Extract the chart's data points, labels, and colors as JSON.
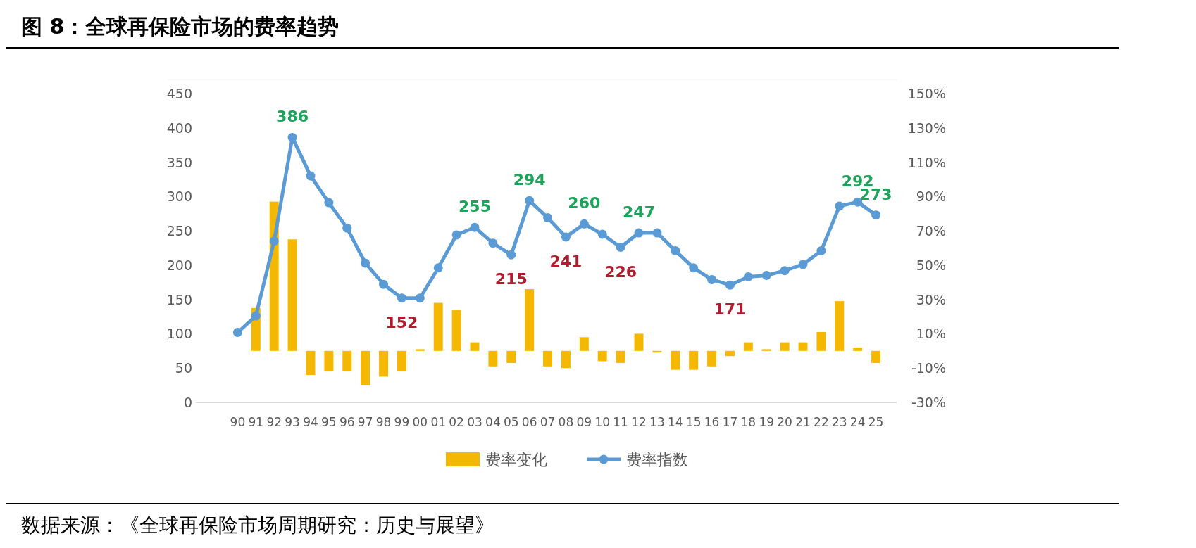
{
  "chart_data": {
    "type": "bar",
    "title": "图 8：全球再保险市场的费率趋势",
    "categories": [
      "90",
      "91",
      "92",
      "93",
      "94",
      "95",
      "96",
      "97",
      "98",
      "99",
      "00",
      "01",
      "02",
      "03",
      "04",
      "05",
      "06",
      "07",
      "08",
      "09",
      "10",
      "11",
      "12",
      "13",
      "14",
      "15",
      "16",
      "17",
      "18",
      "19",
      "20",
      "21",
      "22",
      "23",
      "24",
      "25"
    ],
    "series": [
      {
        "name": "费率变化",
        "axis": "y2",
        "color": "#f5b800",
        "values": [
          null,
          25,
          87,
          65,
          -14,
          -12,
          -12,
          -20,
          -15,
          -12,
          1,
          28,
          24,
          5,
          -9,
          -7,
          36,
          -9,
          -10,
          8,
          -6,
          -7,
          10,
          -1,
          -11,
          -11,
          -9,
          -3,
          5,
          1,
          5,
          5,
          11,
          29,
          2,
          -7
        ]
      },
      {
        "name": "费率指数",
        "type": "line",
        "color": "#5b9bd5",
        "marker": "circle",
        "values": [
          102,
          126,
          235,
          386,
          330,
          291,
          254,
          203,
          172,
          152,
          152,
          196,
          244,
          255,
          232,
          215,
          294,
          269,
          241,
          260,
          245,
          226,
          247,
          247,
          221,
          196,
          179,
          171,
          183,
          185,
          192,
          201,
          221,
          286,
          292,
          273
        ],
        "value_labels": [
          null,
          null,
          null,
          "386",
          null,
          null,
          null,
          null,
          null,
          "152",
          null,
          null,
          null,
          "255",
          null,
          "215",
          "294",
          null,
          "241",
          "260",
          null,
          "226",
          "247",
          null,
          null,
          null,
          null,
          "171",
          null,
          null,
          null,
          null,
          null,
          null,
          "292",
          "273"
        ]
      }
    ],
    "ylim": [
      0,
      450
    ],
    "yticks": [
      0,
      50,
      100,
      150,
      200,
      250,
      300,
      350,
      400,
      450
    ],
    "y2lim": [
      -30,
      150
    ],
    "y2ticks": [
      {
        "value": -30,
        "label": "-30%"
      },
      {
        "value": -10,
        "label": "-10%"
      },
      {
        "value": 10,
        "label": "10%"
      },
      {
        "value": 30,
        "label": "30%"
      },
      {
        "value": 50,
        "label": "50%"
      },
      {
        "value": 70,
        "label": "70%"
      },
      {
        "value": 90,
        "label": "90%"
      },
      {
        "value": 110,
        "label": "110%"
      },
      {
        "value": 130,
        "label": "130%"
      },
      {
        "value": 150,
        "label": "150%"
      }
    ],
    "grid": false,
    "legend": "bottom",
    "annotations": [
      "数据来源：《全球再保险市场周期研究：历史与展望》"
    ]
  }
}
